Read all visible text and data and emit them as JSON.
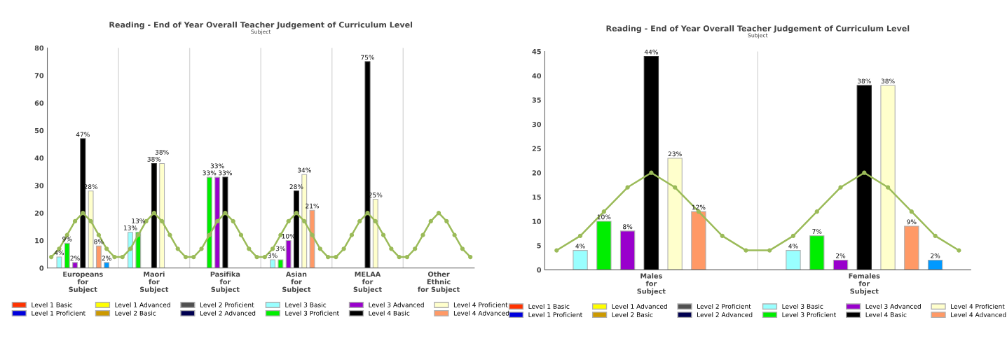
{
  "chart_data": [
    {
      "type": "bar",
      "title": "Reading - End of Year Overall Teacher Judgement of Curriculum Level",
      "subtitle": "Subject",
      "categories": [
        null,
        null,
        null,
        null,
        "Europeans\nfor\nSubject",
        null,
        null,
        null,
        null,
        null,
        null,
        null,
        null,
        "Maori\nfor\nSubject",
        null,
        null,
        null,
        null,
        null,
        null,
        null,
        null,
        "Pasifika\nfor\nSubject",
        null,
        null,
        null,
        null,
        null,
        null,
        null,
        null,
        "Asian\nfor\nSubject",
        null,
        null,
        null,
        null,
        null,
        null,
        null,
        null,
        "MELAA\nfor\nSubject",
        null,
        null,
        null,
        null,
        null,
        null,
        null,
        null,
        "Other\nEthnic\nfor Subject",
        null,
        null,
        null,
        null
      ],
      "ylim": [
        0,
        80
      ],
      "yticks": [
        0,
        10,
        20,
        30,
        40,
        50,
        60,
        70,
        80
      ],
      "grid": "x",
      "legend": "bottom",
      "series": [
        {
          "name": "Level 1 Basic",
          "color": "#ff3300",
          "values": [
            null,
            null,
            null,
            null,
            null,
            null,
            null,
            null,
            null,
            null,
            null,
            null,
            null,
            null,
            null,
            null,
            null,
            null,
            null,
            null,
            null,
            null,
            null,
            null,
            null,
            null,
            null,
            null,
            null,
            null,
            null,
            null,
            null,
            null,
            null,
            null,
            null,
            null,
            null,
            null,
            null,
            null,
            null,
            null,
            null,
            null,
            null,
            null,
            null,
            null,
            null,
            null,
            null,
            null
          ]
        },
        {
          "name": "Level 1 Proficient",
          "color": "#0000dd",
          "values": [
            null,
            null,
            null,
            null,
            null,
            null,
            null,
            null,
            null,
            null,
            null,
            null,
            null,
            null,
            null,
            null,
            null,
            null,
            null,
            null,
            null,
            null,
            null,
            null,
            null,
            null,
            null,
            null,
            null,
            null,
            null,
            null,
            null,
            null,
            null,
            null,
            null,
            null,
            null,
            null,
            null,
            null,
            null,
            null,
            null,
            null,
            null,
            null,
            null,
            null,
            null,
            null,
            null,
            null
          ]
        },
        {
          "name": "Level 1 Advanced",
          "color": "#ffff00",
          "values": [
            null,
            null,
            null,
            null,
            null,
            null,
            null,
            null,
            null,
            null,
            null,
            null,
            null,
            null,
            null,
            null,
            null,
            null,
            null,
            null,
            null,
            null,
            null,
            null,
            null,
            null,
            null,
            null,
            null,
            null,
            null,
            null,
            null,
            null,
            null,
            null,
            null,
            null,
            null,
            null,
            null,
            null,
            null,
            null,
            null,
            null,
            null,
            null,
            null,
            null,
            null,
            null,
            null,
            null
          ]
        },
        {
          "name": "Level 2 Basic",
          "color": "#cc9900",
          "values": [
            null,
            null,
            null,
            null,
            null,
            null,
            null,
            null,
            null,
            null,
            null,
            null,
            null,
            null,
            null,
            null,
            null,
            null,
            null,
            null,
            null,
            null,
            null,
            null,
            null,
            null,
            null,
            null,
            null,
            null,
            null,
            null,
            null,
            null,
            null,
            null,
            null,
            null,
            null,
            null,
            null,
            null,
            null,
            null,
            null,
            null,
            null,
            null,
            null,
            null,
            null,
            null,
            null,
            null
          ]
        },
        {
          "name": "Level 2 Proficient",
          "color": "#505050",
          "values": [
            null,
            null,
            null,
            null,
            null,
            null,
            null,
            null,
            null,
            null,
            null,
            null,
            null,
            null,
            null,
            null,
            null,
            null,
            null,
            null,
            null,
            null,
            null,
            null,
            null,
            null,
            null,
            null,
            null,
            null,
            null,
            null,
            null,
            null,
            null,
            null,
            null,
            null,
            null,
            null,
            null,
            null,
            null,
            null,
            null,
            null,
            null,
            null,
            null,
            null,
            null,
            null,
            null,
            null
          ]
        },
        {
          "name": "Level 2 Advanced",
          "color": "#000050",
          "values": [
            null,
            null,
            null,
            null,
            null,
            null,
            null,
            null,
            null,
            null,
            null,
            null,
            null,
            null,
            null,
            null,
            null,
            null,
            null,
            null,
            null,
            null,
            null,
            null,
            null,
            null,
            null,
            null,
            null,
            null,
            null,
            null,
            null,
            null,
            null,
            null,
            null,
            null,
            null,
            null,
            null,
            null,
            null,
            null,
            null,
            null,
            null,
            null,
            null,
            null,
            null,
            null,
            null,
            null
          ]
        },
        {
          "name": "Level 3 Basic",
          "color": "#99ffff",
          "values": [
            null,
            4,
            null,
            null,
            null,
            null,
            null,
            null,
            null,
            null,
            13,
            null,
            null,
            null,
            null,
            null,
            null,
            null,
            null,
            null,
            null,
            null,
            null,
            null,
            null,
            null,
            null,
            null,
            3,
            null,
            null,
            null,
            null,
            null,
            null,
            null,
            null,
            null,
            null,
            null,
            null,
            null,
            null,
            null,
            null,
            null,
            null,
            null,
            null,
            null,
            null,
            null,
            null,
            null
          ],
          "value_labels": [
            null,
            "4%",
            null,
            null,
            null,
            null,
            null,
            null,
            null,
            null,
            "13%",
            null,
            null,
            null,
            null,
            null,
            null,
            null,
            null,
            null,
            null,
            null,
            null,
            null,
            null,
            null,
            null,
            null,
            "3%",
            null,
            null,
            null,
            null,
            null,
            null,
            null,
            null,
            null,
            null,
            null,
            null,
            null,
            null,
            null,
            null,
            null,
            null,
            null,
            null,
            null,
            null,
            null,
            null,
            null
          ]
        },
        {
          "name": "Level 3 Proficient",
          "color": "#00ee00",
          "values": [
            null,
            null,
            9,
            null,
            null,
            null,
            null,
            null,
            null,
            null,
            null,
            13,
            null,
            null,
            null,
            null,
            null,
            null,
            null,
            null,
            33,
            null,
            null,
            null,
            null,
            null,
            null,
            null,
            null,
            3,
            null,
            null,
            null,
            null,
            null,
            null,
            null,
            null,
            null,
            null,
            null,
            null,
            null,
            null,
            null,
            null,
            null,
            null,
            null,
            null,
            null,
            null,
            null,
            null
          ],
          "value_labels": [
            null,
            null,
            "9%",
            null,
            null,
            null,
            null,
            null,
            null,
            null,
            null,
            "13%",
            null,
            null,
            null,
            null,
            null,
            null,
            null,
            null,
            "33%",
            null,
            null,
            null,
            null,
            null,
            null,
            null,
            null,
            "3%",
            null,
            null,
            null,
            null,
            null,
            null,
            null,
            null,
            null,
            null,
            null,
            null,
            null,
            null,
            null,
            null,
            null,
            null,
            null,
            null,
            null,
            null,
            null,
            null
          ]
        },
        {
          "name": "Level 3 Advanced",
          "color": "#9900cc",
          "values": [
            null,
            null,
            null,
            2,
            null,
            null,
            null,
            null,
            null,
            null,
            null,
            null,
            null,
            null,
            null,
            null,
            null,
            null,
            null,
            null,
            null,
            33,
            null,
            null,
            null,
            null,
            null,
            null,
            null,
            null,
            10,
            null,
            null,
            null,
            null,
            null,
            null,
            null,
            null,
            null,
            null,
            null,
            null,
            null,
            null,
            null,
            null,
            null,
            null,
            null,
            null,
            null,
            null,
            null
          ],
          "value_labels": [
            null,
            null,
            null,
            "2%",
            null,
            null,
            null,
            null,
            null,
            null,
            null,
            null,
            null,
            null,
            null,
            null,
            null,
            null,
            null,
            null,
            null,
            "33%",
            null,
            null,
            null,
            null,
            null,
            null,
            null,
            null,
            "10%",
            null,
            null,
            null,
            null,
            null,
            null,
            null,
            null,
            null,
            null,
            null,
            null,
            null,
            null,
            null,
            null,
            null,
            null,
            null,
            null,
            null,
            null,
            null
          ]
        },
        {
          "name": "Level 4 Basic",
          "color": "#000000",
          "values": [
            null,
            null,
            null,
            null,
            47,
            null,
            null,
            null,
            null,
            null,
            null,
            null,
            null,
            38,
            null,
            null,
            null,
            null,
            null,
            null,
            null,
            null,
            33,
            null,
            null,
            null,
            null,
            null,
            null,
            null,
            null,
            28,
            null,
            null,
            null,
            null,
            null,
            null,
            null,
            null,
            75,
            null,
            null,
            null,
            null,
            null,
            null,
            null,
            null,
            null,
            null,
            null,
            null,
            null
          ],
          "value_labels": [
            null,
            null,
            null,
            null,
            "47%",
            null,
            null,
            null,
            null,
            null,
            null,
            null,
            null,
            "38%",
            null,
            null,
            null,
            null,
            null,
            null,
            null,
            null,
            "33%",
            null,
            null,
            null,
            null,
            null,
            null,
            null,
            null,
            "28%",
            null,
            null,
            null,
            null,
            null,
            null,
            null,
            null,
            "75%",
            null,
            null,
            null,
            null,
            null,
            null,
            null,
            null,
            null,
            null,
            null,
            null,
            null
          ]
        },
        {
          "name": "Level 4 Proficient",
          "color": "#ffffcc",
          "values": [
            null,
            null,
            null,
            null,
            null,
            28,
            null,
            null,
            null,
            null,
            null,
            null,
            null,
            null,
            38,
            null,
            null,
            null,
            null,
            null,
            null,
            null,
            null,
            null,
            null,
            null,
            null,
            null,
            null,
            null,
            null,
            null,
            34,
            null,
            null,
            null,
            null,
            null,
            null,
            null,
            null,
            25,
            null,
            null,
            null,
            null,
            null,
            null,
            null,
            null,
            null,
            null,
            null,
            null
          ],
          "value_labels": [
            null,
            null,
            null,
            null,
            null,
            "28%",
            null,
            null,
            null,
            null,
            null,
            null,
            null,
            null,
            "38%",
            null,
            null,
            null,
            null,
            null,
            null,
            null,
            null,
            null,
            null,
            null,
            null,
            null,
            null,
            null,
            null,
            null,
            "34%",
            null,
            null,
            null,
            null,
            null,
            null,
            null,
            null,
            "25%",
            null,
            null,
            null,
            null,
            null,
            null,
            null,
            null,
            null,
            null,
            null,
            null
          ]
        },
        {
          "name": "Level 4 Advanced",
          "color": "#ff9966",
          "values": [
            null,
            null,
            null,
            null,
            null,
            null,
            8,
            null,
            null,
            null,
            null,
            null,
            null,
            null,
            null,
            null,
            null,
            null,
            null,
            null,
            null,
            null,
            null,
            null,
            null,
            null,
            null,
            null,
            null,
            null,
            null,
            null,
            null,
            21,
            null,
            null,
            null,
            null,
            null,
            null,
            null,
            null,
            null,
            null,
            null,
            null,
            null,
            null,
            null,
            null,
            null,
            null,
            null,
            null
          ],
          "value_labels": [
            null,
            null,
            null,
            null,
            null,
            null,
            "8%",
            null,
            null,
            null,
            null,
            null,
            null,
            null,
            null,
            null,
            null,
            null,
            null,
            null,
            null,
            null,
            null,
            null,
            null,
            null,
            null,
            null,
            null,
            null,
            null,
            null,
            null,
            "21%",
            null,
            null,
            null,
            null,
            null,
            null,
            null,
            null,
            null,
            null,
            null,
            null,
            null,
            null,
            null,
            null,
            null,
            null,
            null,
            null
          ]
        },
        {
          "color": "#0099ff",
          "values": [
            null,
            null,
            null,
            null,
            null,
            null,
            null,
            2,
            null,
            null,
            null,
            null,
            null,
            null,
            null,
            null,
            null,
            null,
            null,
            null,
            null,
            null,
            null,
            null,
            null,
            null,
            null,
            null,
            null,
            null,
            null,
            null,
            null,
            null,
            null,
            null,
            null,
            null,
            null,
            null,
            null,
            null,
            null,
            null,
            null,
            null,
            null,
            null,
            null,
            null,
            null,
            null,
            null,
            null
          ],
          "value_labels": [
            null,
            null,
            null,
            null,
            null,
            null,
            null,
            "2%",
            null,
            null,
            null,
            null,
            null,
            null,
            null,
            null,
            null,
            null,
            null,
            null,
            null,
            null,
            null,
            null,
            null,
            null,
            null,
            null,
            null,
            null,
            null,
            null,
            null,
            null,
            null,
            null,
            null,
            null,
            null,
            null,
            null,
            null,
            null,
            null,
            null,
            null,
            null,
            null,
            null,
            null,
            null,
            null,
            null,
            null
          ]
        },
        {
          "type": "line",
          "color": "#9bbb59",
          "marker": "circle",
          "values": [
            4,
            7,
            12,
            17,
            20,
            17,
            12,
            7,
            4,
            4,
            7,
            12,
            17,
            20,
            17,
            12,
            7,
            4,
            4,
            7,
            12,
            17,
            20,
            17,
            12,
            7,
            4,
            4,
            7,
            12,
            17,
            20,
            17,
            12,
            7,
            4,
            4,
            7,
            12,
            17,
            20,
            17,
            12,
            7,
            4,
            4,
            7,
            12,
            17,
            20,
            17,
            12,
            7,
            4
          ]
        }
      ]
    },
    {
      "type": "bar",
      "title": "Reading - End of Year Overall Teacher Judgement of Curriculum Level",
      "subtitle": "Subject",
      "categories": [
        null,
        null,
        null,
        null,
        "Males\nfor\nSubject",
        null,
        null,
        null,
        null,
        null,
        null,
        null,
        null,
        "Females\nfor\nSubject",
        null,
        null,
        null,
        null
      ],
      "ylim": [
        0,
        45
      ],
      "yticks": [
        0,
        5,
        10,
        15,
        20,
        25,
        30,
        35,
        40,
        45
      ],
      "grid": "x",
      "legend": "bottom",
      "series": [
        {
          "name": "Level 1 Basic",
          "color": "#ff3300",
          "values": [
            null,
            null,
            null,
            null,
            null,
            null,
            null,
            null,
            null,
            null,
            null,
            null,
            null,
            null,
            null,
            null,
            null,
            null
          ]
        },
        {
          "name": "Level 1 Proficient",
          "color": "#0000dd",
          "values": [
            null,
            null,
            null,
            null,
            null,
            null,
            null,
            null,
            null,
            null,
            null,
            null,
            null,
            null,
            null,
            null,
            null,
            null
          ]
        },
        {
          "name": "Level 1 Advanced",
          "color": "#ffff00",
          "values": [
            null,
            null,
            null,
            null,
            null,
            null,
            null,
            null,
            null,
            null,
            null,
            null,
            null,
            null,
            null,
            null,
            null,
            null
          ]
        },
        {
          "name": "Level 2 Basic",
          "color": "#cc9900",
          "values": [
            null,
            null,
            null,
            null,
            null,
            null,
            null,
            null,
            null,
            null,
            null,
            null,
            null,
            null,
            null,
            null,
            null,
            null
          ]
        },
        {
          "name": "Level 2 Proficient",
          "color": "#505050",
          "values": [
            null,
            null,
            null,
            null,
            null,
            null,
            null,
            null,
            null,
            null,
            null,
            null,
            null,
            null,
            null,
            null,
            null,
            null
          ]
        },
        {
          "name": "Level 2 Advanced",
          "color": "#000050",
          "values": [
            null,
            null,
            null,
            null,
            null,
            null,
            null,
            null,
            null,
            null,
            null,
            null,
            null,
            null,
            null,
            null,
            null,
            null
          ]
        },
        {
          "name": "Level 3 Basic",
          "color": "#99ffff",
          "values": [
            null,
            4,
            null,
            null,
            null,
            null,
            null,
            null,
            null,
            null,
            4,
            null,
            null,
            null,
            null,
            null,
            null,
            null
          ],
          "value_labels": [
            null,
            "4%",
            null,
            null,
            null,
            null,
            null,
            null,
            null,
            null,
            "4%",
            null,
            null,
            null,
            null,
            null,
            null,
            null
          ]
        },
        {
          "name": "Level 3 Proficient",
          "color": "#00ee00",
          "values": [
            null,
            null,
            10,
            null,
            null,
            null,
            null,
            null,
            null,
            null,
            null,
            7,
            null,
            null,
            null,
            null,
            null,
            null
          ],
          "value_labels": [
            null,
            null,
            "10%",
            null,
            null,
            null,
            null,
            null,
            null,
            null,
            null,
            "7%",
            null,
            null,
            null,
            null,
            null,
            null
          ]
        },
        {
          "name": "Level 3 Advanced",
          "color": "#9900cc",
          "values": [
            null,
            null,
            null,
            8,
            null,
            null,
            null,
            null,
            null,
            null,
            null,
            null,
            2,
            null,
            null,
            null,
            null,
            null
          ],
          "value_labels": [
            null,
            null,
            null,
            "8%",
            null,
            null,
            null,
            null,
            null,
            null,
            null,
            null,
            "2%",
            null,
            null,
            null,
            null,
            null
          ]
        },
        {
          "name": "Level 4 Basic",
          "color": "#000000",
          "values": [
            null,
            null,
            null,
            null,
            44,
            null,
            null,
            null,
            null,
            null,
            null,
            null,
            null,
            38,
            null,
            null,
            null,
            null
          ],
          "value_labels": [
            null,
            null,
            null,
            null,
            "44%",
            null,
            null,
            null,
            null,
            null,
            null,
            null,
            null,
            "38%",
            null,
            null,
            null,
            null
          ]
        },
        {
          "name": "Level 4 Proficient",
          "color": "#ffffcc",
          "values": [
            null,
            null,
            null,
            null,
            null,
            23,
            null,
            null,
            null,
            null,
            null,
            null,
            null,
            null,
            38,
            null,
            null,
            null
          ],
          "value_labels": [
            null,
            null,
            null,
            null,
            null,
            "23%",
            null,
            null,
            null,
            null,
            null,
            null,
            null,
            null,
            "38%",
            null,
            null,
            null
          ]
        },
        {
          "name": "Level 4 Advanced",
          "color": "#ff9966",
          "values": [
            null,
            null,
            null,
            null,
            null,
            null,
            12,
            null,
            null,
            null,
            null,
            null,
            null,
            null,
            null,
            9,
            null,
            null
          ],
          "value_labels": [
            null,
            null,
            null,
            null,
            null,
            null,
            "12%",
            null,
            null,
            null,
            null,
            null,
            null,
            null,
            null,
            "9%",
            null,
            null
          ]
        },
        {
          "color": "#0099ff",
          "values": [
            null,
            null,
            null,
            null,
            null,
            null,
            null,
            null,
            null,
            null,
            null,
            null,
            null,
            null,
            null,
            null,
            2,
            null
          ],
          "value_labels": [
            null,
            null,
            null,
            null,
            null,
            null,
            null,
            null,
            null,
            null,
            null,
            null,
            null,
            null,
            null,
            null,
            "2%",
            null
          ]
        },
        {
          "type": "line",
          "color": "#9bbb59",
          "marker": "circle",
          "values": [
            4,
            7,
            12,
            17,
            20,
            17,
            12,
            7,
            4,
            4,
            7,
            12,
            17,
            20,
            17,
            12,
            7,
            4
          ]
        }
      ]
    }
  ]
}
